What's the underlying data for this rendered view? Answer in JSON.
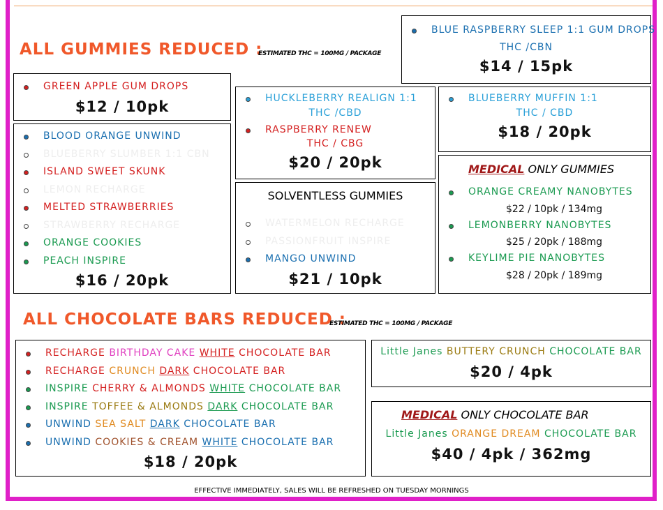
{
  "gummies": {
    "title": "ALL GUMMIES REDUCED :",
    "note": "ESTIMATED THC = 100MG / PACKAGE",
    "blue_raspberry": {
      "item": "BLUE RASPBERRY SLEEP 1:1 GUM DROPS",
      "sub": "THC /CBN",
      "price": "$14 / 15pk"
    },
    "green_apple": {
      "item": "GREEN APPLE GUM DROPS",
      "price": "$12 / 10pk"
    },
    "assorted": {
      "items": [
        "BLOOD ORANGE UNWIND",
        "BLUEBERRY SLUMBER 1:1 CBN",
        "ISLAND SWEET SKUNK",
        "LEMON RECHARGE",
        "MELTED STRAWBERRIES",
        "STRAWBERRY RECHARGE",
        "ORANGE COOKIES",
        "PEACH INSPIRE"
      ],
      "price": "$16 / 20pk"
    },
    "huckleberry": {
      "items": [
        {
          "name": "HUCKLEBERRY REALIGN 1:1",
          "sub": "THC /CBD"
        },
        {
          "name": "RASPBERRY RENEW",
          "sub": "THC / CBG"
        }
      ],
      "price": "$20 / 20pk"
    },
    "blueberry_muffin": {
      "item": "BLUEBERRY MUFFIN 1:1",
      "sub": "THC / CBD",
      "price": "$18 / 20pk"
    },
    "solventless": {
      "title": "SOLVENTLESS GUMMIES",
      "items": [
        "WATERMELON RECHARGE",
        "PASSIONFRUIT INSPIRE",
        "MANGO UNWIND"
      ],
      "price": "$21 / 10pk"
    },
    "medical": {
      "title": [
        "MEDICAL",
        " ONLY GUMMIES"
      ],
      "items": [
        {
          "name": "ORANGE CREAMY NANOBYTES",
          "price": "$22 / 10pk / 134mg"
        },
        {
          "name": "LEMONBERRY NANOBYTES",
          "price": "$25 / 20pk / 188mg"
        },
        {
          "name": "KEYLIME PIE NANOBYTES",
          "price": "$28 / 20pk / 189mg"
        }
      ]
    }
  },
  "chocolate": {
    "title": "ALL CHOCOLATE BARS REDUCED :",
    "note": "ESTIMATED THC = 100MG / PACKAGE",
    "bars": {
      "items": [
        [
          "RECHARGE ",
          "BIRTHDAY CAKE ",
          "WHITE",
          " CHOCOLATE BAR"
        ],
        [
          "RECHARGE ",
          "CRUNCH ",
          "DARK",
          " CHOCOLATE BAR"
        ],
        [
          "INSPIRE ",
          "CHERRY & ALMONDS ",
          "WHITE",
          " CHOCOLATE BAR"
        ],
        [
          "INSPIRE ",
          "TOFFEE & ALMONDS ",
          "DARK",
          " CHOCOLATE BAR"
        ],
        [
          "UNWIND ",
          "SEA SALT ",
          "DARK",
          " CHOCOLATE BAR"
        ],
        [
          "UNWIND ",
          "COOKIES & CREAM ",
          "WHITE",
          " CHOCOLATE BAR"
        ]
      ],
      "price": "$18 / 20pk"
    },
    "little_janes": {
      "item": [
        "Little Janes ",
        "BUTTERY CRUNCH ",
        "CHOCOLATE BAR"
      ],
      "price": "$20 / 4pk"
    },
    "medical": {
      "title": [
        "MEDICAL",
        " ONLY CHOCOLATE BAR"
      ],
      "item": [
        "Little Janes ",
        "ORANGE DREAM ",
        "CHOCOLATE BAR"
      ],
      "price": "$40 / 4pk / 362mg"
    }
  },
  "footer": "EFFECTIVE IMMEDIATELY, SALES WILL BE REFRESHED ON TUESDAY MORNINGS"
}
